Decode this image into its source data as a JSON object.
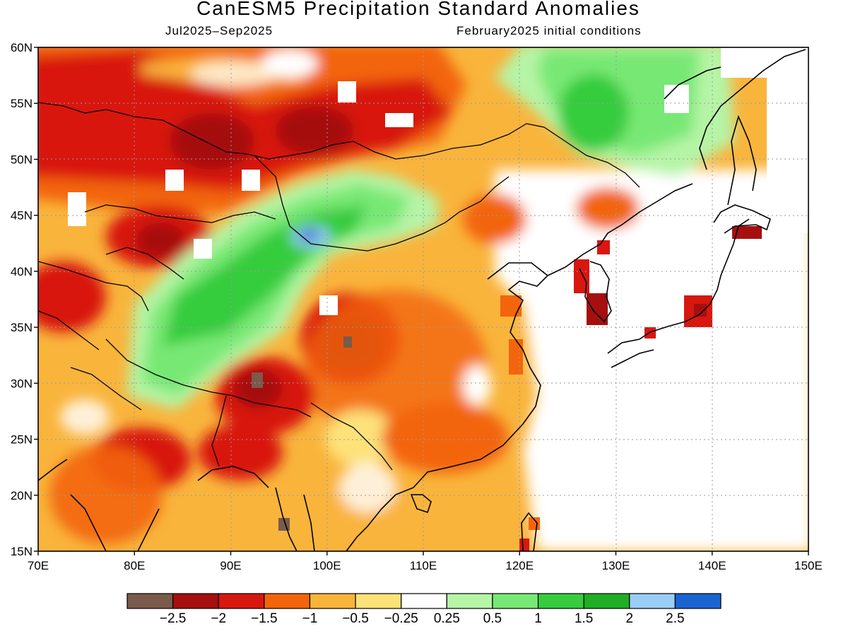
{
  "title": "CanESM5 Precipitation Standard Anomalies",
  "subtitle_left": "Jul2025–Sep2025",
  "subtitle_right": "February2025 initial conditions",
  "lat_ticks": [
    "60N",
    "55N",
    "50N",
    "45N",
    "40N",
    "35N",
    "30N",
    "25N",
    "20N",
    "15N"
  ],
  "lon_ticks": [
    "70E",
    "80E",
    "90E",
    "100E",
    "110E",
    "120E",
    "130E",
    "140E",
    "150E"
  ],
  "extent": {
    "lon_min": 70,
    "lon_max": 150,
    "lat_min": 15,
    "lat_max": 60
  },
  "colorbar": {
    "colors": [
      "#7a5a4a",
      "#a50f0f",
      "#d8170f",
      "#f3650c",
      "#f9b43c",
      "#fde27a",
      "#ffffff",
      "#b6f4a6",
      "#78e874",
      "#36cc3e",
      "#1fae24",
      "#99cef6",
      "#1b63d0"
    ],
    "labels": [
      "−2.5",
      "−2",
      "−1.5",
      "−1",
      "−0.5",
      "−0.25",
      "0.25",
      "0.5",
      "1",
      "1.5",
      "2",
      "2.5"
    ]
  }
}
